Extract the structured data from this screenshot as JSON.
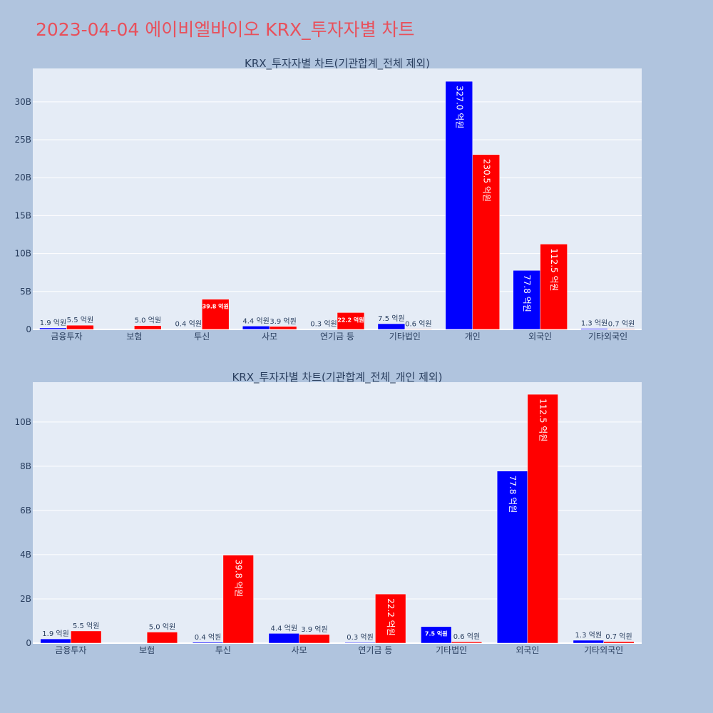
{
  "page": {
    "title": "2023-04-04 에이비엘바이오 KRX_투자자별 차트"
  },
  "colors": {
    "buy": "#0000ff",
    "sell": "#ff0000",
    "plot_bg": "#e5ecf6",
    "page_bg": "#b0c4de",
    "title": "#e8505b"
  },
  "chart_data": [
    {
      "type": "bar",
      "title": "KRX_투자자별 차트(기관합계_전체 제외)",
      "categories": [
        "금융투자",
        "보험",
        "투신",
        "사모",
        "연기금 등",
        "기타법인",
        "개인",
        "외국인",
        "기타외국인"
      ],
      "series": [
        {
          "color": "#0000ff",
          "values": [
            0.19,
            0,
            0.04,
            0.44,
            0.03,
            0.75,
            32.7,
            7.78,
            0.13
          ],
          "labels": [
            "1.9 억원",
            "",
            "0.4 억원",
            "4.4 억원",
            "0.3 억원",
            "7.5 억원",
            "327.0 억원",
            "77.8 억원",
            "1.3 억원"
          ]
        },
        {
          "color": "#ff0000",
          "values": [
            0.55,
            0.5,
            3.98,
            0.39,
            2.22,
            0.06,
            23.05,
            11.25,
            0.07
          ],
          "labels": [
            "5.5 억원",
            "5.0 억원",
            "39.8 억원",
            "3.9 억원",
            "22.2 억원",
            "0.6 억원",
            "230.5 억원",
            "112.5 억원",
            "0.7 억원"
          ]
        }
      ],
      "y_unit": "B",
      "ylim": [
        0,
        34.4
      ],
      "yticks": [
        0,
        5,
        10,
        15,
        20,
        25,
        30
      ],
      "ytick_labels": [
        "0",
        "5B",
        "10B",
        "15B",
        "20B",
        "25B",
        "30B"
      ],
      "grid": true
    },
    {
      "type": "bar",
      "title": "KRX_투자자별 차트(기관합계_전체_개인 제외)",
      "categories": [
        "금융투자",
        "보험",
        "투신",
        "사모",
        "연기금 등",
        "기타법인",
        "외국인",
        "기타외국인"
      ],
      "series": [
        {
          "color": "#0000ff",
          "values": [
            0.19,
            0,
            0.04,
            0.44,
            0.03,
            0.75,
            7.78,
            0.13
          ],
          "labels": [
            "1.9 억원",
            "",
            "0.4 억원",
            "4.4 억원",
            "0.3 억원",
            "7.5 억원",
            "77.8 억원",
            "1.3 억원"
          ]
        },
        {
          "color": "#ff0000",
          "values": [
            0.55,
            0.5,
            3.98,
            0.39,
            2.22,
            0.06,
            11.25,
            0.07
          ],
          "labels": [
            "5.5 억원",
            "5.0 억원",
            "39.8 억원",
            "3.9 억원",
            "22.2 억원",
            "0.6 억원",
            "112.5 억원",
            "0.7 억원"
          ]
        }
      ],
      "y_unit": "B",
      "ylim": [
        0,
        11.8
      ],
      "yticks": [
        0,
        2,
        4,
        6,
        8,
        10
      ],
      "ytick_labels": [
        "0",
        "2B",
        "4B",
        "6B",
        "8B",
        "10B"
      ],
      "grid": true
    }
  ]
}
